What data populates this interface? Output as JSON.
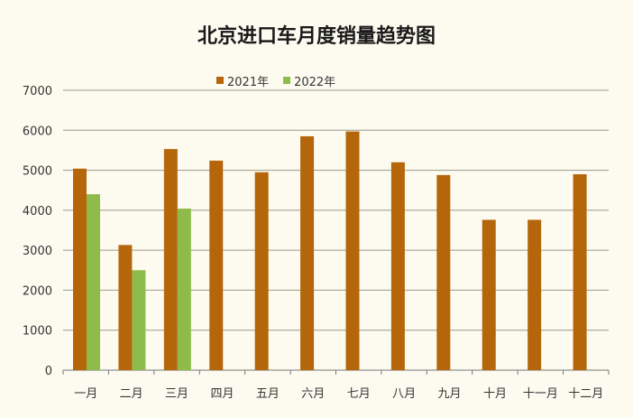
{
  "chart_data": {
    "type": "bar",
    "title": "北京进口车月度销量趋势图",
    "categories": [
      "一月",
      "二月",
      "三月",
      "四月",
      "五月",
      "六月",
      "七月",
      "八月",
      "九月",
      "十月",
      "十一月",
      "十二月"
    ],
    "series": [
      {
        "name": "2021年",
        "color": "#b5660a",
        "values": [
          5040,
          3130,
          5530,
          5240,
          4950,
          5850,
          5970,
          5200,
          4880,
          3760,
          3760,
          4900
        ]
      },
      {
        "name": "2022年",
        "color": "#8fbb4a",
        "values": [
          4400,
          2500,
          4040,
          null,
          null,
          null,
          null,
          null,
          null,
          null,
          null,
          null
        ]
      }
    ],
    "ylim": [
      0,
      7000
    ],
    "yticks": [
      0,
      1000,
      2000,
      3000,
      4000,
      5000,
      6000,
      7000
    ],
    "xlabel": "",
    "ylabel": "",
    "grid": true,
    "legend_position": "top"
  }
}
